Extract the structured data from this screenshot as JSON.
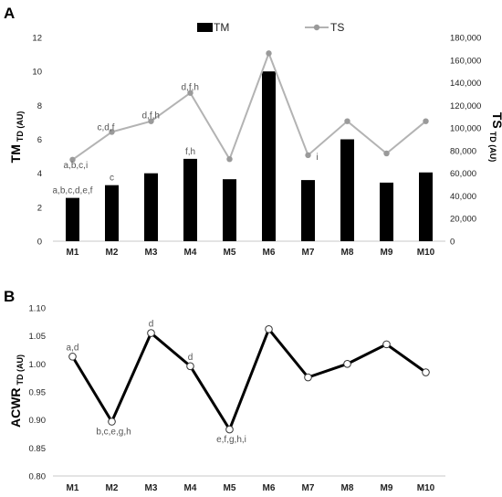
{
  "chart_data": [
    {
      "panel": "A",
      "type": "bar",
      "categories": [
        "M1",
        "M2",
        "M3",
        "M4",
        "M5",
        "M6",
        "M7",
        "M8",
        "M9",
        "M10"
      ],
      "y_left_label": "TM",
      "y_left_sub": "TD (AU)",
      "y_right_label": "TS",
      "y_right_sub": "TD (AU)",
      "ylim_left": [
        0,
        12
      ],
      "yticks_left": [
        "0",
        "2",
        "4",
        "6",
        "8",
        "10",
        "12"
      ],
      "ylim_right": [
        0,
        180000
      ],
      "yticks_right": [
        "0",
        "20,000",
        "40,000",
        "60,000",
        "80,000",
        "100,000",
        "120,000",
        "140,000",
        "160,000",
        "180,000"
      ],
      "series": [
        {
          "name": "TM",
          "type": "bar",
          "axis": "left",
          "color": "#000000",
          "values": [
            2.55,
            3.3,
            4.0,
            4.85,
            3.65,
            10.0,
            3.6,
            6.0,
            3.45,
            4.05
          ]
        },
        {
          "name": "TS",
          "type": "line",
          "axis": "right",
          "color": "#b3b3b3",
          "values": [
            72000,
            96500,
            106000,
            131000,
            72500,
            166000,
            76000,
            106000,
            77500,
            106000
          ]
        }
      ],
      "bar_annotations": [
        "a,b,c,d,e,f",
        "c",
        "",
        "f,h",
        "",
        "",
        "",
        "",
        "",
        ""
      ],
      "line_annotations": [
        "a,b,c,i",
        "c,d,f",
        "d,f,h",
        "d,f,h",
        "",
        "",
        "i",
        "",
        "",
        ""
      ],
      "legend_position": "top-center",
      "grid": false
    },
    {
      "panel": "B",
      "type": "line",
      "categories": [
        "M1",
        "M2",
        "M3",
        "M4",
        "M5",
        "M6",
        "M7",
        "M8",
        "M9",
        "M10"
      ],
      "ylabel": "ACWR",
      "ylabel_sub": "TD (AU)",
      "ylim": [
        0.8,
        1.1
      ],
      "yticks": [
        "0.80",
        "0.85",
        "0.90",
        "0.95",
        "1.00",
        "1.05",
        "1.10"
      ],
      "series": [
        {
          "name": "ACWR",
          "color": "#000000",
          "values": [
            1.013,
            0.897,
            1.055,
            0.996,
            0.883,
            1.062,
            0.976,
            1.0,
            1.035,
            0.985
          ]
        }
      ],
      "annotations": [
        "a,d",
        "b,c,e,g,h",
        "d",
        "d",
        "e,f,g,h,i",
        "",
        "",
        "",
        "",
        ""
      ],
      "grid": false
    }
  ]
}
